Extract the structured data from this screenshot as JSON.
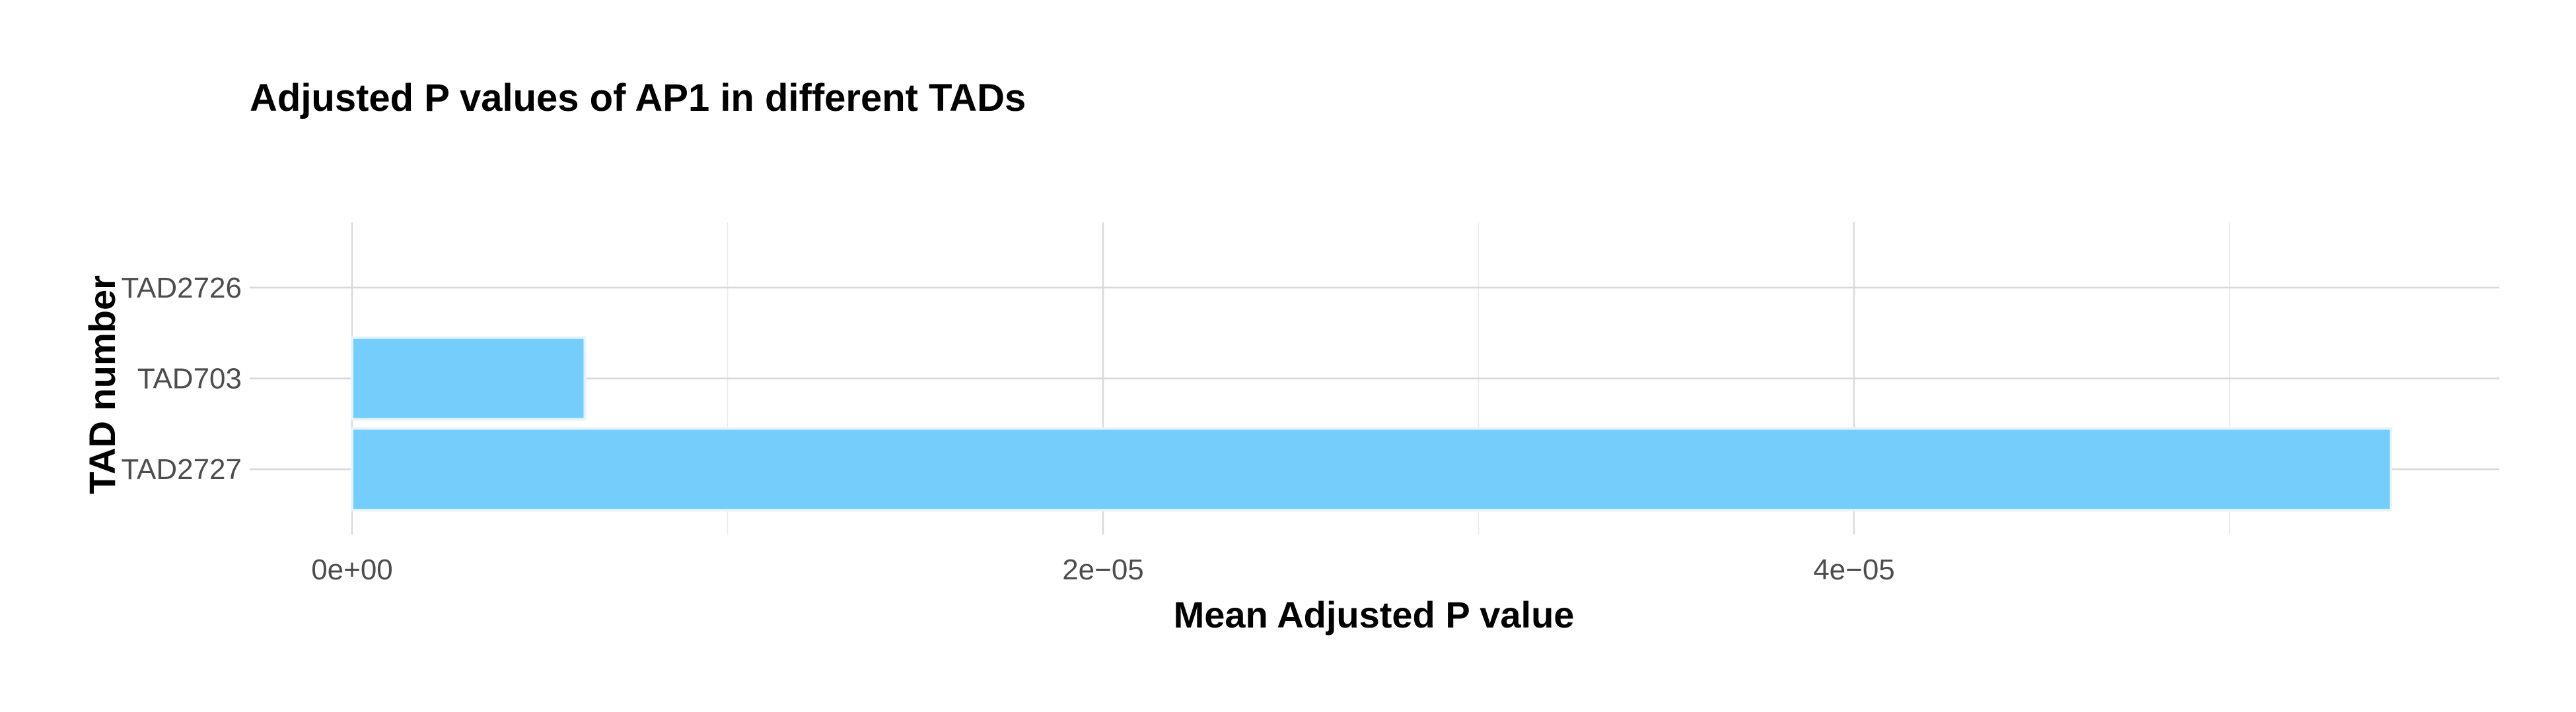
{
  "chart_data": {
    "type": "bar",
    "orientation": "horizontal",
    "title": "Adjusted P values of AP1 in different TADs",
    "xlabel": "Mean Adjusted P value",
    "ylabel": "TAD number",
    "categories": [
      "TAD2727",
      "TAD703",
      "TAD2726"
    ],
    "values": [
      5.43e-05,
      6.2e-06,
      0
    ],
    "xlim": [
      0,
      5.7e-05
    ],
    "x_ticks": [
      {
        "value": 0,
        "label": "0e+00"
      },
      {
        "value": 2e-05,
        "label": "2e−05"
      },
      {
        "value": 4e-05,
        "label": "4e−05"
      }
    ],
    "x_minor_ticks": [
      1e-05,
      3e-05,
      5e-05
    ],
    "bar_color": "#74CDFB",
    "grid": true,
    "legend": "none"
  }
}
